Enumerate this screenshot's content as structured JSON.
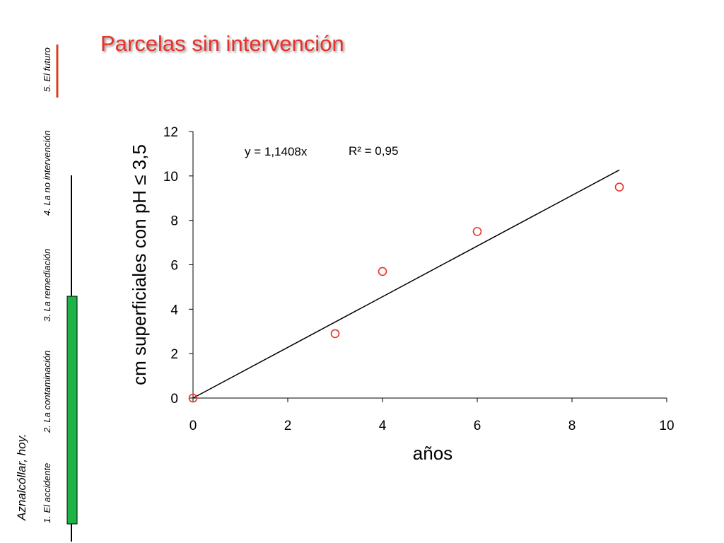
{
  "slide": {
    "title": "Parcelas sin intervención",
    "subtitle": "Aznalcóllar, hoy.",
    "nav": [
      "1. El accidente",
      "2. La contaminación",
      "3. La remediación",
      "4. La no intervención",
      "5. El futuro"
    ]
  },
  "chart_data": {
    "type": "scatter",
    "x_label": "años",
    "y_label": "cm superficiales con pH ≤ 3,5",
    "x": [
      0,
      3,
      4,
      6,
      9
    ],
    "values": [
      0,
      2.9,
      5.7,
      7.5,
      9.5
    ],
    "color": "#e8312a",
    "trendline": {
      "slope": 1.1408,
      "x": [
        0,
        9
      ],
      "color": "#000000"
    },
    "annotations": [
      "y = 1,1408x",
      "R² = 0,95"
    ],
    "xlim": [
      0,
      10
    ],
    "xticks": [
      0,
      2,
      4,
      6,
      8,
      10
    ],
    "ylim": [
      0,
      12
    ],
    "yticks": [
      0,
      2,
      4,
      6,
      8,
      10,
      12
    ],
    "grid": false
  }
}
